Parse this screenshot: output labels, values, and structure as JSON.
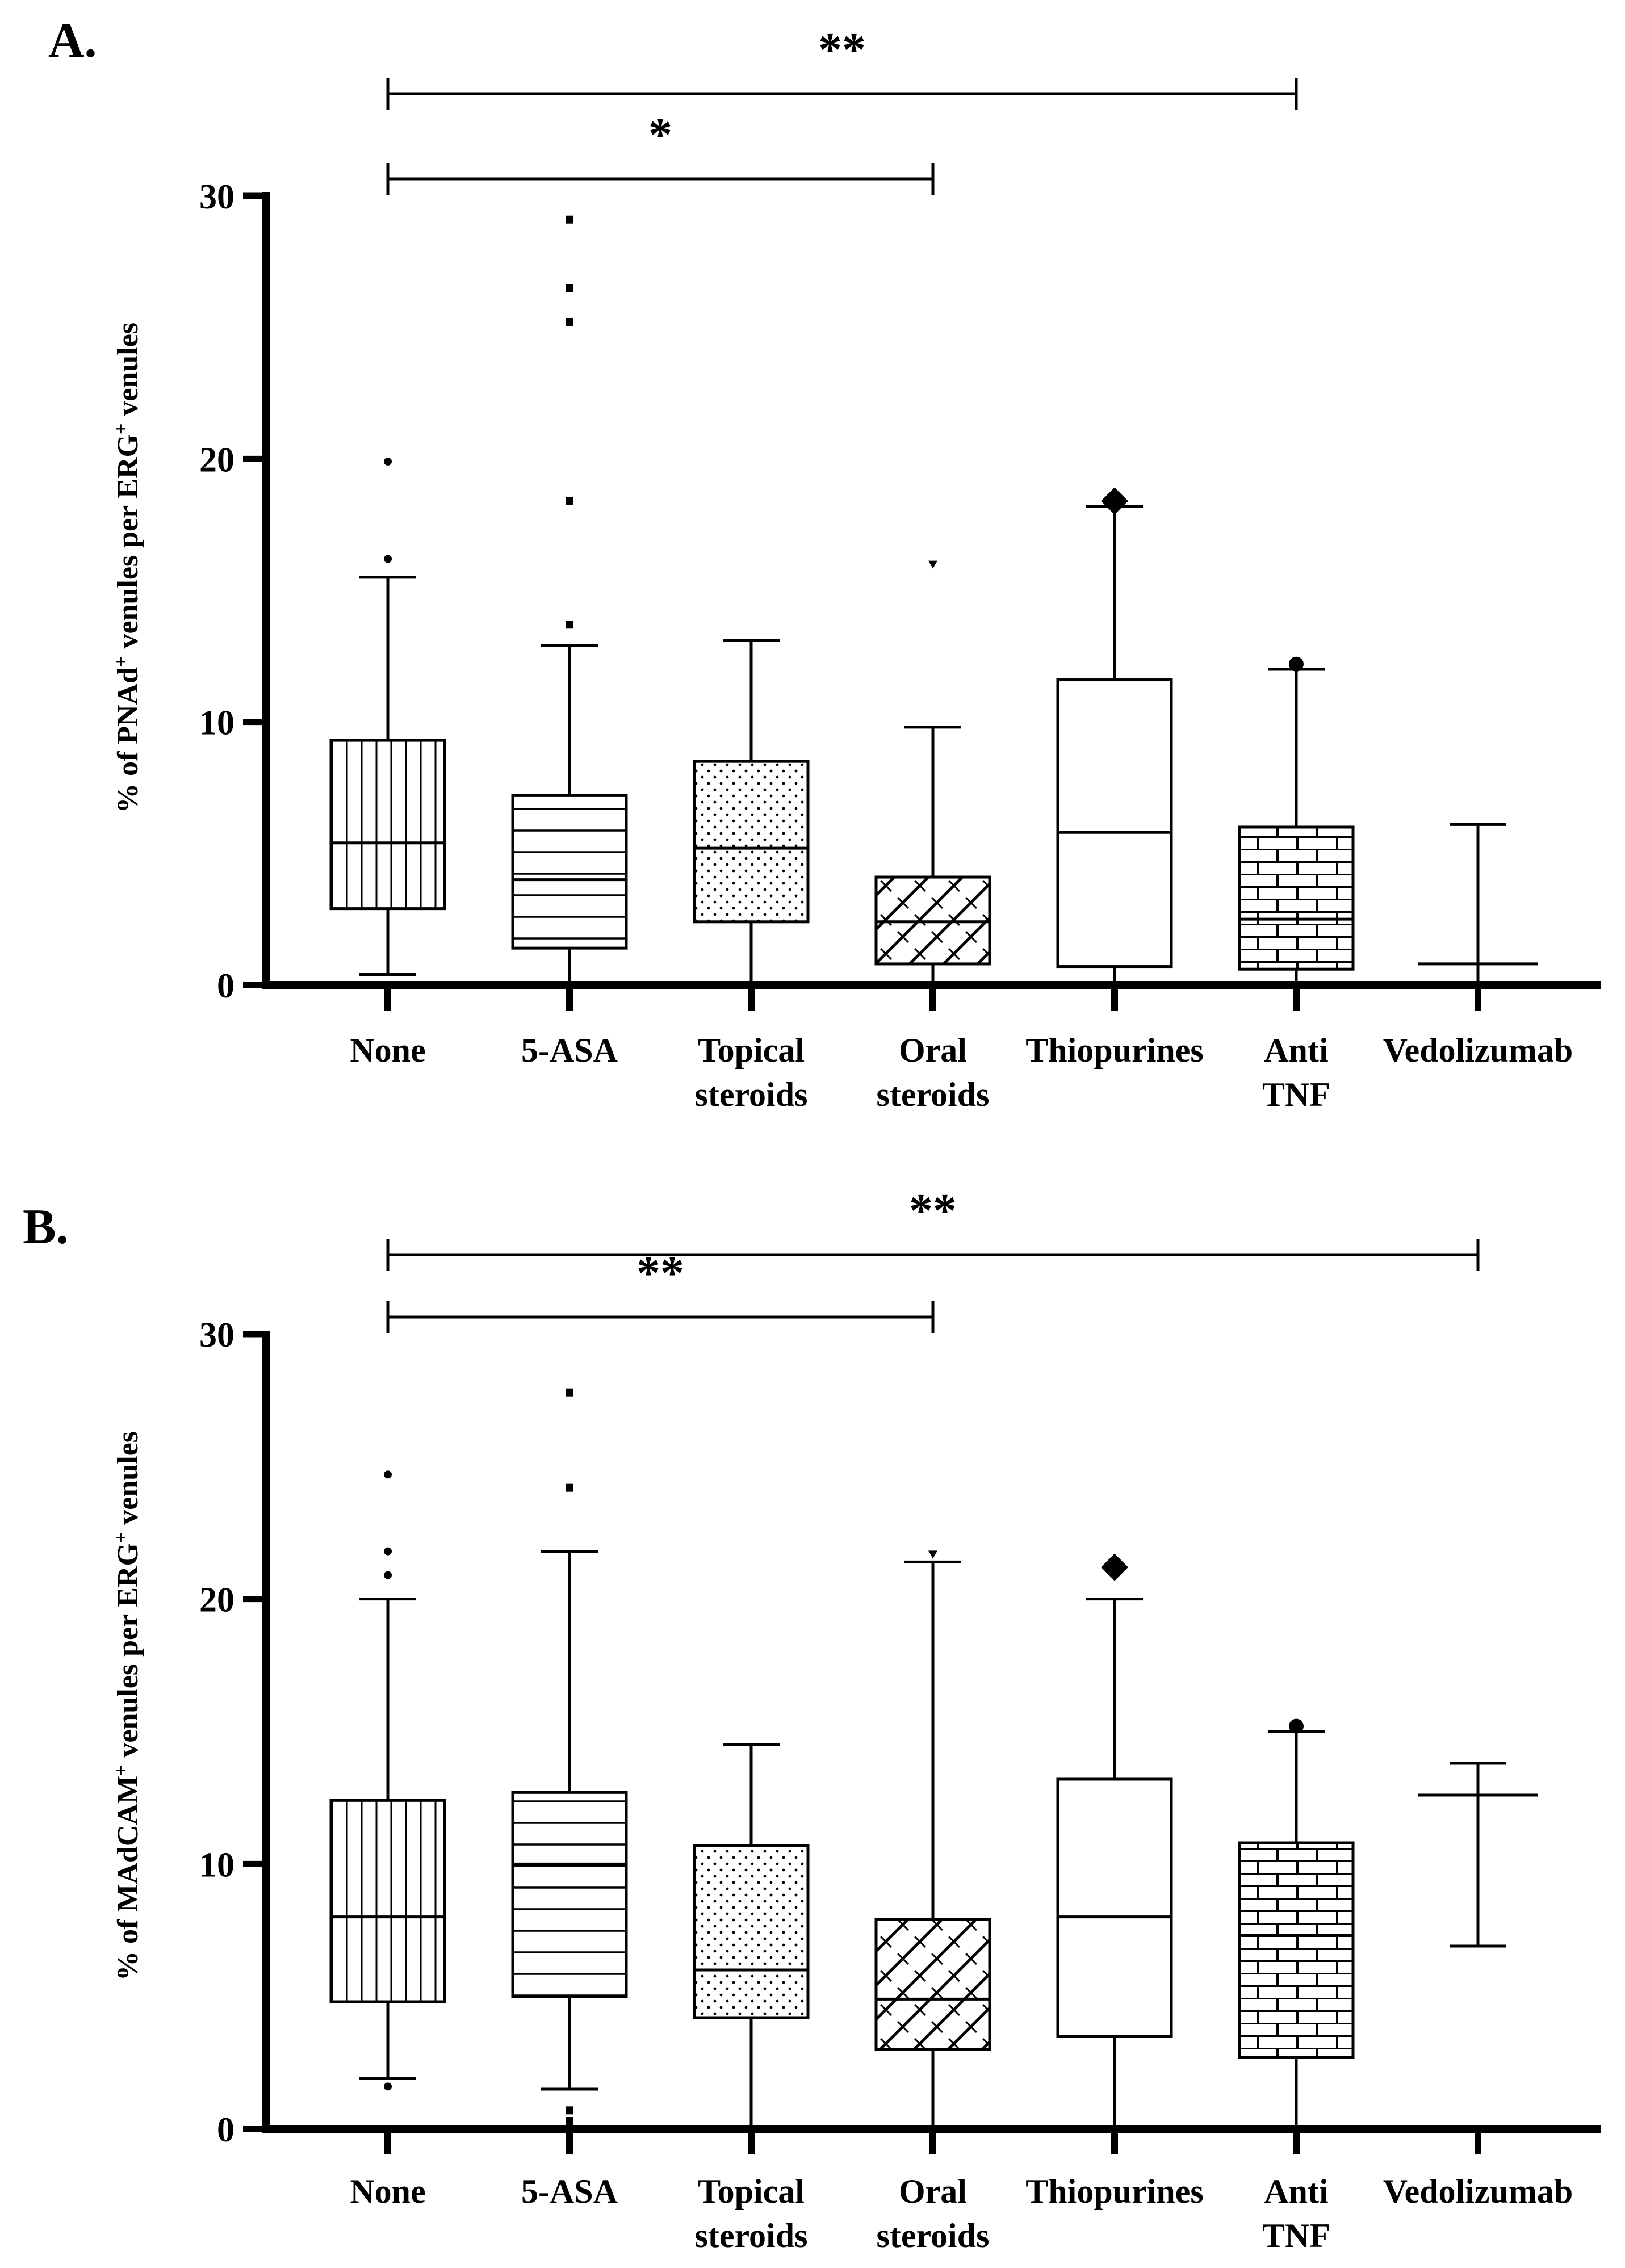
{
  "chart_data": [
    {
      "type": "boxplot",
      "panel_label": "A.",
      "ylabel": {
        "pre": "% of PNAd",
        "sup1": "+",
        "mid": " venules per ERG",
        "sup2": "+",
        "post": " venules"
      },
      "ylim": [
        0,
        30
      ],
      "yticks": [
        0,
        10,
        20,
        30
      ],
      "categories": [
        "None",
        "5-ASA",
        "Topical\nsteroids",
        "Oral\nsteroids",
        "Thiopurines",
        "Anti\nTNF",
        "Vedolizumab"
      ],
      "boxes": [
        {
          "min": 0.4,
          "q1": 2.9,
          "median": 5.4,
          "q3": 9.3,
          "max": 15.5,
          "pattern": "vlines",
          "outliers": [
            16.2,
            19.9
          ],
          "outlier_marker": "dot"
        },
        {
          "min": 0,
          "q1": 1.4,
          "median": 4.0,
          "q3": 7.2,
          "max": 12.9,
          "pattern": "hlines",
          "outliers": [
            13.7,
            18.4,
            25.2,
            26.5,
            29.1
          ],
          "outlier_marker": "square"
        },
        {
          "min": 0,
          "q1": 2.4,
          "median": 5.2,
          "q3": 8.5,
          "max": 13.1,
          "pattern": "dots",
          "outliers": [],
          "outlier_marker": "none"
        },
        {
          "min": 0,
          "q1": 0.8,
          "median": 2.4,
          "q3": 4.1,
          "max": 9.8,
          "pattern": "diag",
          "outliers": [
            16.0
          ],
          "outlier_marker": "triangle"
        },
        {
          "min": 0,
          "q1": 0.7,
          "median": 5.8,
          "q3": 11.6,
          "max": 18.2,
          "pattern": "none",
          "outliers": [
            18.4
          ],
          "outlier_marker": "diamond"
        },
        {
          "min": 0,
          "q1": 0.6,
          "median": 2.5,
          "q3": 6.0,
          "max": 12.0,
          "pattern": "bricks",
          "outliers": [
            12.2
          ],
          "outlier_marker": "circle"
        },
        {
          "min": 0,
          "q1": 0,
          "median": 0.15,
          "q3": 0.8,
          "max": 6.1,
          "pattern": "none",
          "outliers": [],
          "outlier_marker": "none",
          "whisker_only": true
        }
      ],
      "significance": [
        {
          "from": 0,
          "to": 5,
          "label": "**"
        },
        {
          "from": 0,
          "to": 3,
          "label": "*"
        }
      ]
    },
    {
      "type": "boxplot",
      "panel_label": "B.",
      "ylabel": {
        "pre": "% of MAdCAM",
        "sup1": "+",
        "mid": " venules per ERG",
        "sup2": "+",
        "post": " venules"
      },
      "ylim": [
        0,
        30
      ],
      "yticks": [
        0,
        10,
        20,
        30
      ],
      "categories": [
        "None",
        "5-ASA",
        "Topical\nsteroids",
        "Oral\nsteroids",
        "Thiopurines",
        "Anti\nTNF",
        "Vedolizumab"
      ],
      "boxes": [
        {
          "min": 1.9,
          "q1": 4.8,
          "median": 8.0,
          "q3": 12.4,
          "max": 20.0,
          "pattern": "vlines",
          "outliers": [
            1.6,
            20.9,
            21.8,
            24.7
          ],
          "outlier_marker": "dot"
        },
        {
          "min": 1.5,
          "q1": 5.0,
          "median": 10.0,
          "q3": 12.7,
          "max": 21.8,
          "pattern": "hlines",
          "outliers": [
            0.3,
            0.7,
            24.2,
            27.8
          ],
          "outlier_marker": "square"
        },
        {
          "min": 0,
          "q1": 4.2,
          "median": 6.0,
          "q3": 10.7,
          "max": 14.5,
          "pattern": "dots",
          "outliers": [],
          "outlier_marker": "none"
        },
        {
          "min": 0,
          "q1": 3.0,
          "median": 4.9,
          "q3": 7.9,
          "max": 21.4,
          "pattern": "diag",
          "outliers": [
            21.7
          ],
          "outlier_marker": "triangle"
        },
        {
          "min": 0,
          "q1": 3.5,
          "median": 8.0,
          "q3": 13.2,
          "max": 20.0,
          "pattern": "none",
          "outliers": [
            21.2
          ],
          "outlier_marker": "diamond"
        },
        {
          "min": 0,
          "q1": 2.7,
          "median": 7.3,
          "q3": 10.8,
          "max": 15.0,
          "pattern": "bricks",
          "outliers": [
            15.2
          ],
          "outlier_marker": "circle"
        },
        {
          "min": 6.9,
          "q1": 12.6,
          "median": 12.6,
          "q3": 12.6,
          "max": 13.8,
          "pattern": "none",
          "outliers": [],
          "outlier_marker": "none",
          "whisker_only": true
        }
      ],
      "significance": [
        {
          "from": 0,
          "to": 6,
          "label": "**"
        },
        {
          "from": 0,
          "to": 3,
          "label": "**"
        }
      ]
    }
  ]
}
